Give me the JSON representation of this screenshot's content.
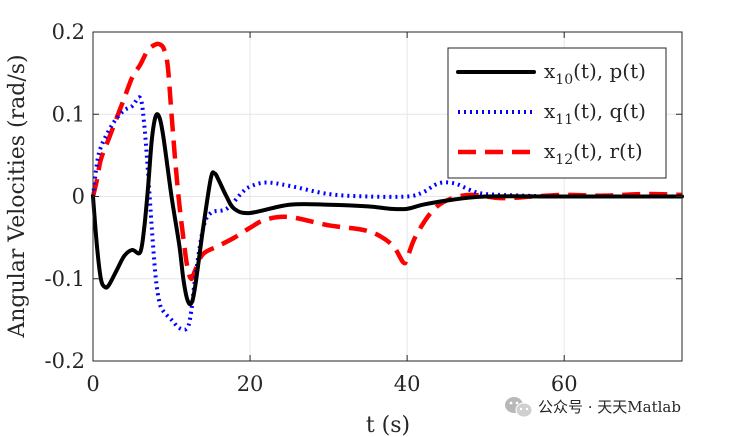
{
  "chart_data": {
    "type": "line",
    "xlabel": "t (s)",
    "ylabel": "Angular Velocities (rad/s)",
    "xlim": [
      0,
      75
    ],
    "ylim": [
      -0.2,
      0.2
    ],
    "xticks": [
      "0",
      "20",
      "40",
      "60"
    ],
    "yticks": [
      "0.2",
      "0.1",
      "0",
      "-0.1",
      "-0.2"
    ],
    "grid": true,
    "legend_position": "top-right",
    "series": [
      {
        "name": "x10(t), p(t)",
        "label_main": "x",
        "label_sub": "10",
        "label_rest": "(t), p(t)",
        "color": "#000000",
        "style": "solid",
        "points": [
          [
            0,
            0
          ],
          [
            0.5,
            -0.06
          ],
          [
            1,
            -0.1
          ],
          [
            1.5,
            -0.11
          ],
          [
            2,
            -0.108
          ],
          [
            3,
            -0.09
          ],
          [
            4,
            -0.072
          ],
          [
            5,
            -0.065
          ],
          [
            6,
            -0.068
          ],
          [
            6.5,
            -0.04
          ],
          [
            7,
            0.01
          ],
          [
            7.5,
            0.07
          ],
          [
            8,
            0.098
          ],
          [
            8.5,
            0.095
          ],
          [
            9,
            0.07
          ],
          [
            10,
            0
          ],
          [
            11,
            -0.06
          ],
          [
            11.5,
            -0.1
          ],
          [
            12,
            -0.125
          ],
          [
            12.5,
            -0.13
          ],
          [
            13,
            -0.11
          ],
          [
            14,
            -0.04
          ],
          [
            15,
            0.022
          ],
          [
            15.5,
            0.028
          ],
          [
            16,
            0.02
          ],
          [
            17,
            0
          ],
          [
            18,
            -0.015
          ],
          [
            20,
            -0.02
          ],
          [
            25,
            -0.01
          ],
          [
            30,
            -0.01
          ],
          [
            35,
            -0.012
          ],
          [
            38,
            -0.015
          ],
          [
            40,
            -0.015
          ],
          [
            42,
            -0.01
          ],
          [
            45,
            -0.005
          ],
          [
            50,
            0
          ],
          [
            60,
            0
          ],
          [
            75,
            0
          ]
        ]
      },
      {
        "name": "x11(t), q(t)",
        "label_main": "x",
        "label_sub": "11",
        "label_rest": "(t), q(t)",
        "color": "#0000ff",
        "style": "dotted",
        "points": [
          [
            0,
            0
          ],
          [
            0.5,
            0.04
          ],
          [
            1,
            0.06
          ],
          [
            2,
            0.08
          ],
          [
            3,
            0.095
          ],
          [
            4,
            0.105
          ],
          [
            5,
            0.11
          ],
          [
            6,
            0.12
          ],
          [
            6.5,
            0.09
          ],
          [
            7,
            0.03
          ],
          [
            7.5,
            -0.04
          ],
          [
            8,
            -0.1
          ],
          [
            8.5,
            -0.13
          ],
          [
            9,
            -0.14
          ],
          [
            10,
            -0.15
          ],
          [
            11,
            -0.16
          ],
          [
            12,
            -0.16
          ],
          [
            12.5,
            -0.14
          ],
          [
            13,
            -0.1
          ],
          [
            14,
            -0.04
          ],
          [
            15,
            -0.02
          ],
          [
            17,
            -0.015
          ],
          [
            19,
            0.005
          ],
          [
            20,
            0.012
          ],
          [
            22,
            0.017
          ],
          [
            25,
            0.013
          ],
          [
            30,
            0.003
          ],
          [
            35,
            0
          ],
          [
            40,
            0
          ],
          [
            42,
            0.005
          ],
          [
            44,
            0.016
          ],
          [
            46,
            0.016
          ],
          [
            48,
            0.008
          ],
          [
            50,
            0.003
          ],
          [
            55,
            0.001
          ],
          [
            60,
            0
          ],
          [
            75,
            0
          ]
        ]
      },
      {
        "name": "x12(t), r(t)",
        "label_main": "x",
        "label_sub": "12",
        "label_rest": "(t), r(t)",
        "color": "#ff0000",
        "style": "dashed",
        "points": [
          [
            0,
            0
          ],
          [
            0.5,
            0.02
          ],
          [
            1,
            0.045
          ],
          [
            2,
            0.07
          ],
          [
            3,
            0.095
          ],
          [
            4,
            0.12
          ],
          [
            5,
            0.145
          ],
          [
            6,
            0.16
          ],
          [
            7,
            0.178
          ],
          [
            8,
            0.185
          ],
          [
            8.5,
            0.185
          ],
          [
            9,
            0.18
          ],
          [
            9.5,
            0.16
          ],
          [
            10,
            0.1
          ],
          [
            10.5,
            0.04
          ],
          [
            11,
            -0.01
          ],
          [
            11.5,
            -0.05
          ],
          [
            12,
            -0.085
          ],
          [
            12.5,
            -0.1
          ],
          [
            13,
            -0.09
          ],
          [
            14,
            -0.07
          ],
          [
            16,
            -0.06
          ],
          [
            18,
            -0.05
          ],
          [
            20,
            -0.038
          ],
          [
            22,
            -0.028
          ],
          [
            25,
            -0.025
          ],
          [
            30,
            -0.035
          ],
          [
            35,
            -0.042
          ],
          [
            38,
            -0.058
          ],
          [
            39.5,
            -0.08
          ],
          [
            40,
            -0.075
          ],
          [
            41,
            -0.05
          ],
          [
            43,
            -0.02
          ],
          [
            45,
            -0.005
          ],
          [
            48,
            0.002
          ],
          [
            52,
            -0.002
          ],
          [
            56,
            0
          ],
          [
            60,
            0.002
          ],
          [
            65,
            0.001
          ],
          [
            70,
            0.003
          ],
          [
            75,
            0.002
          ]
        ]
      }
    ]
  },
  "watermark": {
    "text": "公众号 · 天天Matlab",
    "icon": "wechat-icon"
  }
}
